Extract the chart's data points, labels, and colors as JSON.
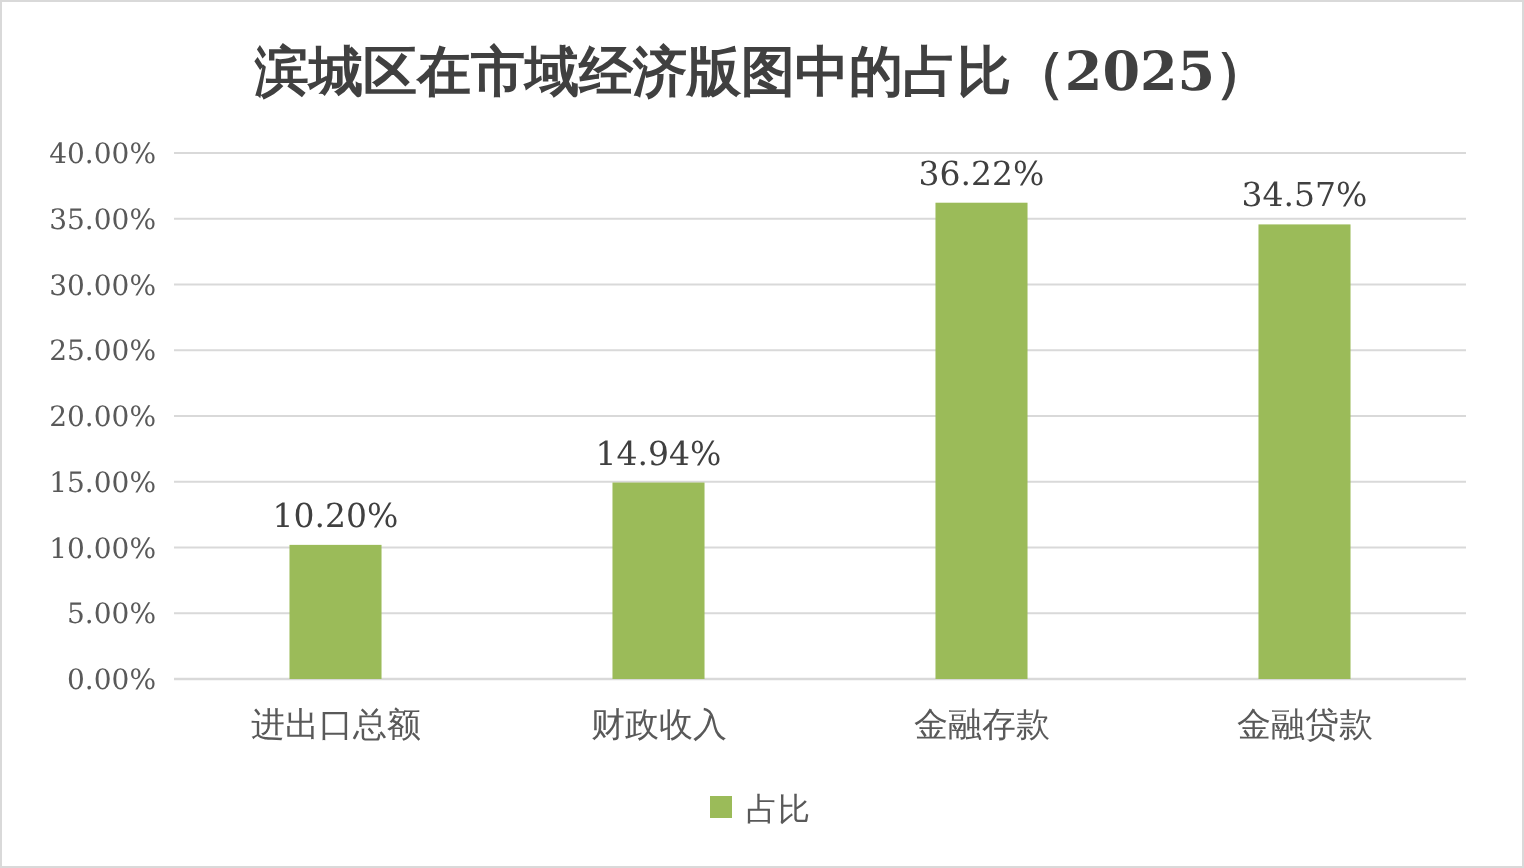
{
  "chart_data": {
    "type": "bar",
    "title": "滨城区在市域经济版图中的占比（2025）",
    "categories": [
      "进出口总额",
      "财政收入",
      "金融存款",
      "金融贷款"
    ],
    "series": [
      {
        "name": "占比",
        "color": "#9bbb59",
        "values": [
          10.2,
          14.94,
          36.22,
          34.57
        ],
        "value_labels": [
          "10.20%",
          "14.94%",
          "36.22%",
          "34.57%"
        ]
      }
    ],
    "ylim": [
      0,
      40
    ],
    "yticks": [
      {
        "value": 0,
        "label": "0.00%"
      },
      {
        "value": 5,
        "label": "5.00%"
      },
      {
        "value": 10,
        "label": "10.00%"
      },
      {
        "value": 15,
        "label": "15.00%"
      },
      {
        "value": 20,
        "label": "20.00%"
      },
      {
        "value": 25,
        "label": "25.00%"
      },
      {
        "value": 30,
        "label": "30.00%"
      },
      {
        "value": 35,
        "label": "35.00%"
      },
      {
        "value": 40,
        "label": "40.00%"
      }
    ],
    "grid": "y",
    "legend": "bottom"
  }
}
